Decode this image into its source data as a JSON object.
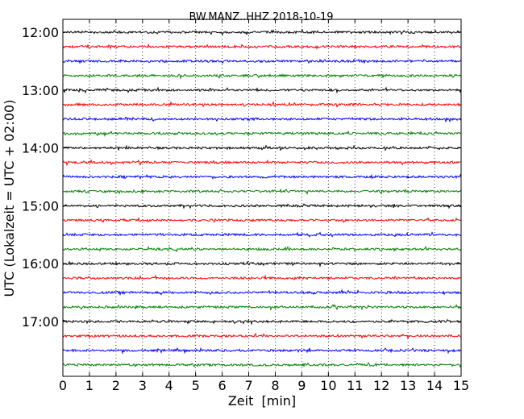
{
  "chart_data": {
    "type": "line",
    "title": "BW.MANZ..HHZ 2018-10-19",
    "xlabel": "Zeit  [min]",
    "ylabel": "UTC (Lokalzeit = UTC + 02:00)",
    "xlim": [
      0,
      15
    ],
    "xticks": [
      0,
      1,
      2,
      3,
      4,
      5,
      6,
      7,
      8,
      9,
      10,
      11,
      12,
      13,
      14,
      15
    ],
    "ytick_labels": [
      "12:00",
      "13:00",
      "14:00",
      "15:00",
      "16:00",
      "17:00"
    ],
    "trace_starts_utc": [
      "12:00",
      "12:15",
      "12:30",
      "12:45",
      "13:00",
      "13:15",
      "13:30",
      "13:45",
      "14:00",
      "14:15",
      "14:30",
      "14:45",
      "15:00",
      "15:15",
      "15:30",
      "15:45",
      "16:00",
      "16:15",
      "16:30",
      "16:45",
      "17:00",
      "17:15",
      "17:30",
      "17:45"
    ],
    "trace_minutes_per_line": 15,
    "colors": [
      "#000000",
      "#ff0000",
      "#0000ff",
      "#008000"
    ],
    "grid": "vertical dotted",
    "legend": "none"
  }
}
